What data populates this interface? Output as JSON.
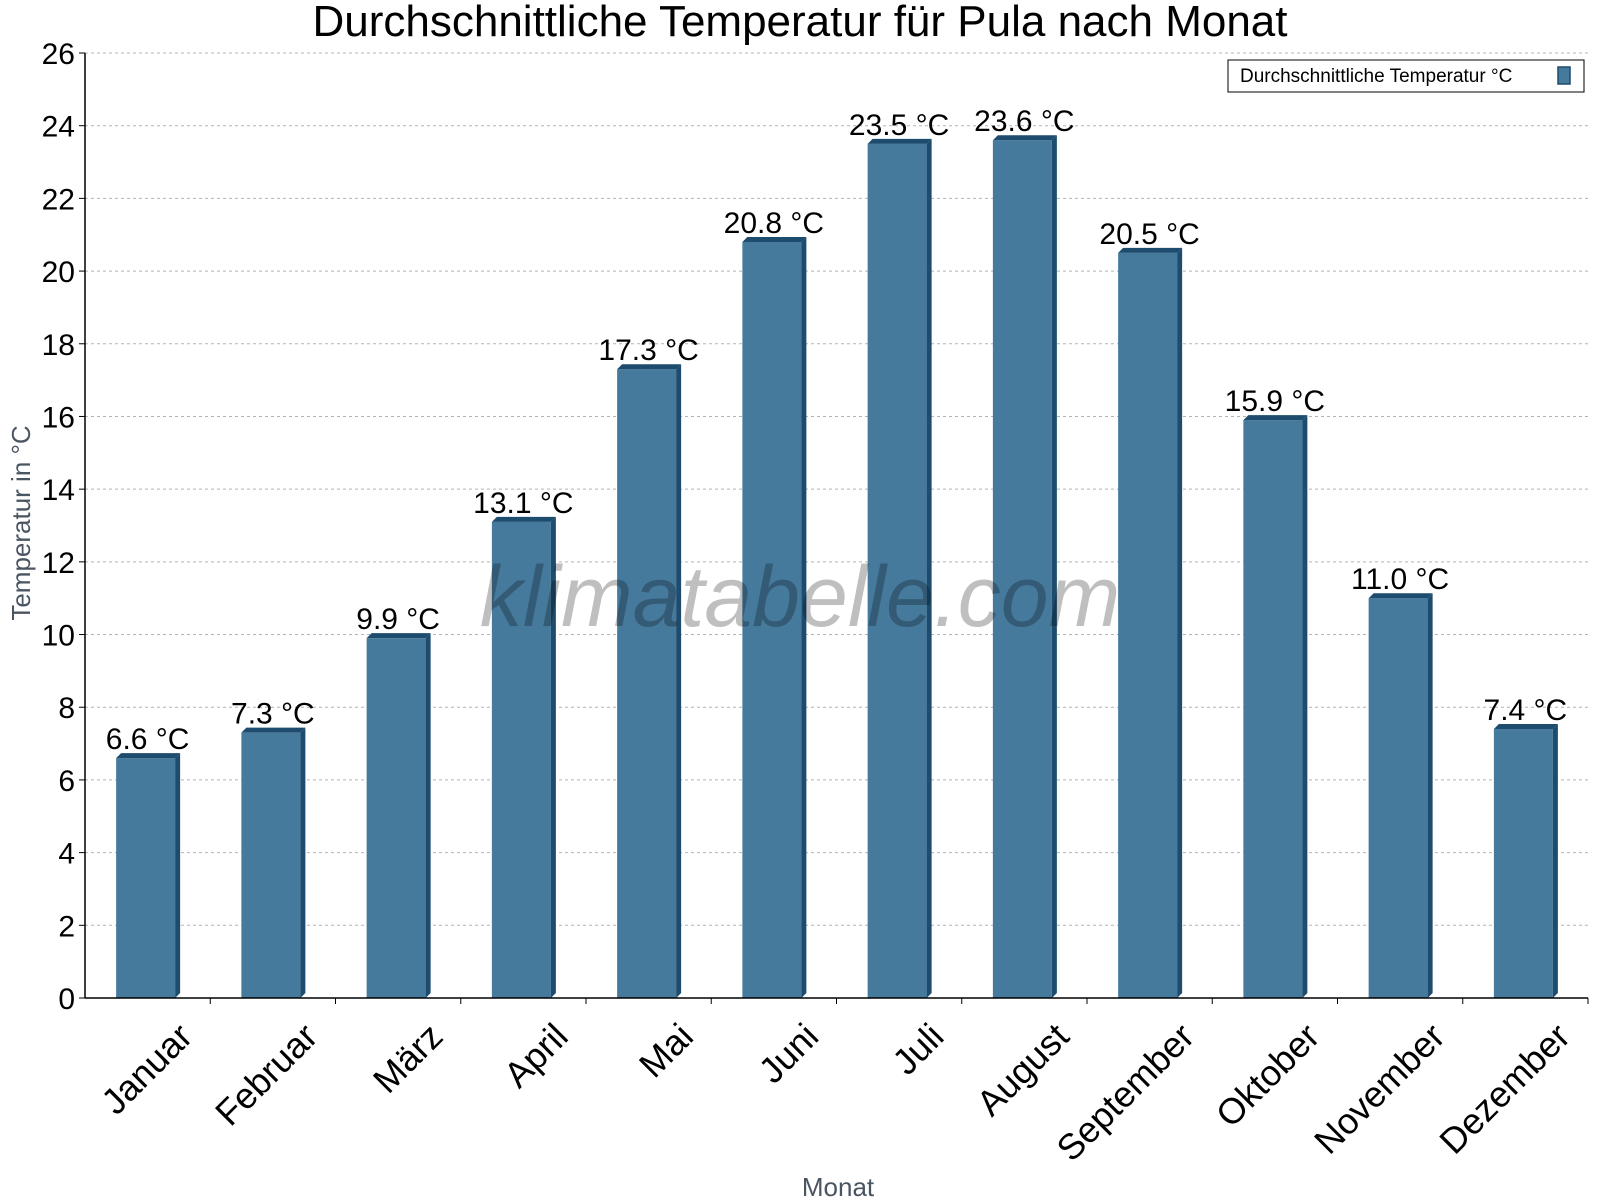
{
  "chart_data": {
    "type": "bar",
    "title": "Durchschnittliche Temperatur für Pula nach Monat",
    "xlabel": "Monat",
    "ylabel": "Temperatur in °C",
    "categories": [
      "Januar",
      "Februar",
      "März",
      "April",
      "Mai",
      "Juni",
      "Juli",
      "August",
      "September",
      "Oktober",
      "November",
      "Dezember"
    ],
    "series": [
      {
        "name": "Durchschnittliche Temperatur °C",
        "values": [
          6.6,
          7.3,
          9.9,
          13.1,
          17.3,
          20.8,
          23.5,
          23.6,
          20.5,
          15.9,
          11.0,
          7.4
        ],
        "data_labels": [
          "6.6 °C",
          "7.3 °C",
          "9.9 °C",
          "13.1 °C",
          "17.3 °C",
          "20.8 °C",
          "23.5 °C",
          "23.6 °C",
          "20.5 °C",
          "15.9 °C",
          "11.0 °C",
          "7.4 °C"
        ],
        "color": "#467a9c",
        "shade_color": "#1d4c6e"
      }
    ],
    "ylim": [
      0,
      26
    ],
    "yticks": [
      0,
      2,
      4,
      6,
      8,
      10,
      12,
      14,
      16,
      18,
      20,
      22,
      24,
      26
    ],
    "grid": true,
    "legend_position": "top-right"
  },
  "watermark": "klimatabelle.com"
}
